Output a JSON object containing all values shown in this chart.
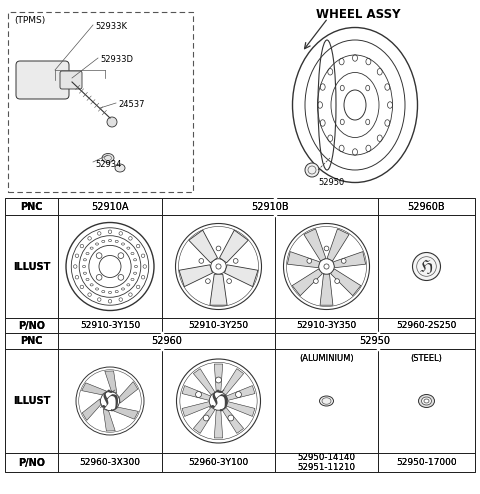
{
  "title": "WHEEL ASSY",
  "bg_color": "#ffffff",
  "text_color": "#000000",
  "tpms_label": "(TPMS)",
  "pnc_row1": [
    "PNC",
    "52910A",
    "52910B",
    "52960B"
  ],
  "pnc_row2": [
    "PNC",
    "52960",
    "52950"
  ],
  "pno_row1": [
    "P/NO",
    "52910-3Y150",
    "52910-3Y250",
    "52910-3Y350",
    "52960-2S250"
  ],
  "pno_row2": [
    "P/NO",
    "52960-3X300",
    "52960-3Y100",
    "52950-14140\n52951-11210",
    "52950-17000"
  ],
  "aluminium_label": "(ALUMINIUM)",
  "steel_label": "(STEEL)",
  "illust_label": "ILLUST",
  "part_labels": [
    "52933K",
    "52933D",
    "24537",
    "52934"
  ],
  "wheel_part": "52950",
  "c0": 5,
  "c1": 58,
  "c2": 162,
  "c3": 275,
  "c4": 378,
  "c5": 475,
  "r0": 198,
  "r1": 215,
  "r2": 318,
  "r3": 333,
  "r4": 349,
  "r5": 453,
  "r6": 472
}
